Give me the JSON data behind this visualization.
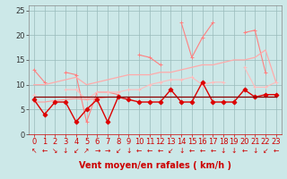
{
  "x": [
    0,
    1,
    2,
    3,
    4,
    5,
    6,
    7,
    8,
    9,
    10,
    11,
    12,
    13,
    14,
    15,
    16,
    17,
    18,
    19,
    20,
    21,
    22,
    23
  ],
  "series": [
    {
      "name": "rafales_zigzag",
      "color": "#ff8080",
      "linewidth": 0.8,
      "marker": "+",
      "markersize": 3,
      "y": [
        13.0,
        10.5,
        null,
        12.5,
        12.0,
        2.5,
        8.5,
        8.5,
        8.0,
        null,
        16.0,
        15.5,
        14.0,
        null,
        22.5,
        15.5,
        19.5,
        22.5,
        null,
        null,
        20.5,
        21.0,
        12.5,
        null
      ]
    },
    {
      "name": "trend_upper",
      "color": "#ffaaaa",
      "linewidth": 0.9,
      "marker": null,
      "markersize": 0,
      "y": [
        10.0,
        10.0,
        10.5,
        11.0,
        11.5,
        10.0,
        10.5,
        11.0,
        11.5,
        12.0,
        12.0,
        12.0,
        12.5,
        12.5,
        13.0,
        13.5,
        14.0,
        14.0,
        14.5,
        15.0,
        15.0,
        15.5,
        17.0,
        10.5
      ]
    },
    {
      "name": "trend_mid_upper",
      "color": "#ffbbbb",
      "linewidth": 0.8,
      "marker": "+",
      "markersize": 2.5,
      "y": [
        8.0,
        null,
        null,
        9.0,
        9.0,
        7.0,
        8.5,
        8.5,
        8.5,
        9.0,
        9.0,
        10.0,
        10.5,
        11.0,
        11.0,
        11.5,
        10.0,
        10.5,
        10.5,
        null,
        13.5,
        9.5,
        9.5,
        10.5
      ]
    },
    {
      "name": "avg_line",
      "color": "#ff9999",
      "linewidth": 0.8,
      "marker": null,
      "markersize": 0,
      "y": [
        6.5,
        6.5,
        6.8,
        7.0,
        7.2,
        7.0,
        7.2,
        7.5,
        7.5,
        7.5,
        7.5,
        7.5,
        7.5,
        7.5,
        7.5,
        7.5,
        7.5,
        7.5,
        7.5,
        7.5,
        7.5,
        7.5,
        7.5,
        7.5
      ]
    },
    {
      "name": "main_line",
      "color": "#dd0000",
      "linewidth": 1.0,
      "marker": "D",
      "markersize": 2.5,
      "y": [
        7.0,
        4.0,
        6.5,
        6.5,
        2.5,
        5.0,
        7.0,
        2.5,
        7.5,
        7.0,
        6.5,
        6.5,
        6.5,
        9.0,
        6.5,
        6.5,
        10.5,
        6.5,
        6.5,
        6.5,
        9.0,
        7.5,
        8.0,
        8.0
      ]
    },
    {
      "name": "flat_avg",
      "color": "#880000",
      "linewidth": 0.9,
      "marker": null,
      "markersize": 0,
      "y": [
        7.5,
        7.5,
        7.5,
        7.5,
        7.5,
        7.5,
        7.5,
        7.5,
        7.5,
        7.5,
        7.5,
        7.5,
        7.5,
        7.5,
        7.5,
        7.5,
        7.5,
        7.5,
        7.5,
        7.5,
        7.5,
        7.5,
        7.5,
        7.5
      ]
    }
  ],
  "arrow_symbols": [
    "↖",
    "←",
    "↘",
    "↓",
    "↙",
    "↗",
    "→",
    "→",
    "↙",
    "↓",
    "←",
    "←",
    "←",
    "↙",
    "↓",
    "←",
    "←",
    "←",
    "↓",
    "↓",
    "←",
    "↓",
    "↙",
    "←"
  ],
  "xlabel": "Vent moyen/en rafales ( km/h )",
  "xlim": [
    -0.5,
    23.5
  ],
  "ylim": [
    0,
    26
  ],
  "yticks": [
    0,
    5,
    10,
    15,
    20,
    25
  ],
  "xticks": [
    0,
    1,
    2,
    3,
    4,
    5,
    6,
    7,
    8,
    9,
    10,
    11,
    12,
    13,
    14,
    15,
    16,
    17,
    18,
    19,
    20,
    21,
    22,
    23
  ],
  "grid_color": "#99bbbb",
  "bg_color": "#cce8e8",
  "xlabel_color": "#cc0000",
  "xlabel_fontsize": 7.0,
  "tick_fontsize": 6.0,
  "arrow_fontsize": 5.5
}
